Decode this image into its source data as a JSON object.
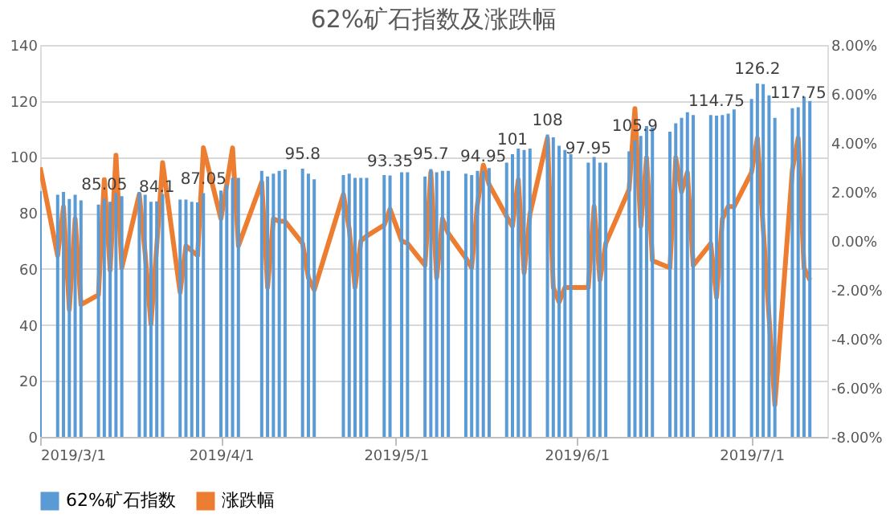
{
  "chart_data": {
    "type": "bar",
    "title": "62%矿石指数及涨跌幅",
    "x": [
      "2019-03-01",
      "2019-03-04",
      "2019-03-05",
      "2019-03-06",
      "2019-03-07",
      "2019-03-08",
      "2019-03-11",
      "2019-03-12",
      "2019-03-13",
      "2019-03-14",
      "2019-03-15",
      "2019-03-18",
      "2019-03-19",
      "2019-03-20",
      "2019-03-21",
      "2019-03-22",
      "2019-03-25",
      "2019-03-26",
      "2019-03-27",
      "2019-03-28",
      "2019-03-29",
      "2019-04-01",
      "2019-04-02",
      "2019-04-03",
      "2019-04-04",
      "2019-04-08",
      "2019-04-09",
      "2019-04-10",
      "2019-04-11",
      "2019-04-12",
      "2019-04-15",
      "2019-04-16",
      "2019-04-17",
      "2019-04-22",
      "2019-04-23",
      "2019-04-24",
      "2019-04-25",
      "2019-04-26",
      "2019-04-29",
      "2019-04-30",
      "2019-05-02",
      "2019-05-03",
      "2019-05-06",
      "2019-05-07",
      "2019-05-08",
      "2019-05-09",
      "2019-05-10",
      "2019-05-13",
      "2019-05-14",
      "2019-05-15",
      "2019-05-16",
      "2019-05-17",
      "2019-05-20",
      "2019-05-21",
      "2019-05-22",
      "2019-05-23",
      "2019-05-24",
      "2019-05-27",
      "2019-05-28",
      "2019-05-29",
      "2019-05-30",
      "2019-05-31",
      "2019-06-03",
      "2019-06-04",
      "2019-06-05",
      "2019-06-06",
      "2019-06-10",
      "2019-06-11",
      "2019-06-12",
      "2019-06-13",
      "2019-06-14",
      "2019-06-17",
      "2019-06-18",
      "2019-06-19",
      "2019-06-20",
      "2019-06-21",
      "2019-06-24",
      "2019-06-25",
      "2019-06-26",
      "2019-06-27",
      "2019-06-28",
      "2019-07-01",
      "2019-07-02",
      "2019-07-03",
      "2019-07-04",
      "2019-07-05",
      "2019-07-08",
      "2019-07-09",
      "2019-07-10",
      "2019-07-11"
    ],
    "series": [
      {
        "name": "62%矿石指数",
        "color": "#5b9bd5",
        "values": [
          87.8,
          86.5,
          87.5,
          85,
          86.5,
          84.5,
          83,
          85.05,
          84,
          87,
          86,
          87.5,
          86.5,
          84,
          84.1,
          86.8,
          84.8,
          84.8,
          84,
          83.8,
          87.05,
          88,
          90,
          92.5,
          92.5,
          95,
          93,
          94,
          95,
          95.5,
          95.8,
          94,
          92,
          93.5,
          94,
          92.5,
          92.5,
          92.5,
          93.5,
          93.35,
          94.5,
          94.5,
          93,
          95.7,
          94.5,
          95,
          95,
          94,
          93.5,
          95,
          94.95,
          96,
          98,
          101,
          103,
          102.5,
          103,
          108,
          107,
          104,
          102.5,
          101,
          97.95,
          100,
          98,
          98,
          102,
          105.9,
          107.5,
          111,
          110.5,
          109,
          112,
          114,
          116,
          115,
          115,
          114.75,
          115,
          115.5,
          117,
          120.7,
          126.2,
          126,
          122,
          114,
          117.4,
          117.75,
          121.5,
          120
        ],
        "value_labels": [
          null,
          null,
          null,
          null,
          null,
          null,
          null,
          "85.05",
          null,
          null,
          null,
          null,
          null,
          null,
          "84.1",
          null,
          null,
          null,
          null,
          null,
          "87.05",
          null,
          null,
          null,
          null,
          null,
          null,
          null,
          null,
          null,
          "95.8",
          null,
          null,
          null,
          null,
          null,
          null,
          null,
          null,
          "93.35",
          null,
          null,
          null,
          "95.7",
          null,
          null,
          null,
          null,
          null,
          null,
          "94.95",
          null,
          null,
          "101",
          null,
          null,
          null,
          "108",
          null,
          null,
          null,
          null,
          "97.95",
          null,
          null,
          null,
          null,
          "105.9",
          null,
          null,
          null,
          null,
          null,
          null,
          null,
          null,
          null,
          "114.75",
          null,
          null,
          null,
          null,
          "126.2",
          null,
          null,
          null,
          null,
          "117.75",
          null,
          null
        ]
      },
      {
        "name": "涨跌幅",
        "type": "line",
        "axis": "y2",
        "color": "#ed7d31",
        "values": [
          3.0,
          -0.6,
          1.4,
          -2.8,
          0.9,
          -2.6,
          -2.2,
          2.5,
          -1.2,
          3.5,
          -1.1,
          1.9,
          -0.5,
          -3.4,
          -0.2,
          3.2,
          -2.1,
          -0.2,
          -0.4,
          -0.6,
          3.8,
          0.9,
          2.3,
          3.8,
          -0.2,
          2.4,
          -1.9,
          0.9,
          0.8,
          0.8,
          -0.1,
          -1.5,
          -2.0,
          1.9,
          0.5,
          -1.9,
          0.0,
          0.2,
          0.65,
          1.3,
          0.0,
          -0.1,
          -1.0,
          2.8,
          -1.5,
          0.9,
          0.3,
          -0.7,
          -1.1,
          1.5,
          3.1,
          2.3,
          1.0,
          0.6,
          2.5,
          -1.3,
          1.1,
          4.2,
          -1.9,
          -2.5,
          -1.9,
          -1.9,
          -1.9,
          1.4,
          -1.6,
          -0.1,
          2.1,
          5.4,
          0.6,
          3.4,
          -0.8,
          -1.1,
          3.4,
          2.0,
          2.8,
          -1.0,
          -0.1,
          -2.3,
          0.9,
          1.4,
          1.4,
          2.8,
          4.2,
          0.5,
          -3.1,
          -6.7,
          2.9,
          4.2,
          -1.1,
          -1.6
        ]
      }
    ],
    "xlim": [
      "2019-03-01",
      "2019-07-14"
    ],
    "xticks": [
      {
        "value": "2019-03-01",
        "label": "2019/3/1"
      },
      {
        "value": "2019-04-01",
        "label": "2019/4/1"
      },
      {
        "value": "2019-05-01",
        "label": "2019/5/1"
      },
      {
        "value": "2019-06-01",
        "label": "2019/6/1"
      },
      {
        "value": "2019-07-01",
        "label": "2019/7/1"
      }
    ],
    "ylim": [
      0,
      140
    ],
    "yticks": [
      0,
      20,
      40,
      60,
      80,
      100,
      120,
      140
    ],
    "y2lim": [
      -8,
      8
    ],
    "y2ticks": [
      {
        "value": -8,
        "label": "-8.00%"
      },
      {
        "value": -6,
        "label": "-6.00%"
      },
      {
        "value": -4,
        "label": "-4.00%"
      },
      {
        "value": -2,
        "label": "-2.00%"
      },
      {
        "value": 0,
        "label": "0.00%"
      },
      {
        "value": 2,
        "label": "2.00%"
      },
      {
        "value": 4,
        "label": "4.00%"
      },
      {
        "value": 6,
        "label": "6.00%"
      },
      {
        "value": 8,
        "label": "8.00%"
      }
    ],
    "grid": "y",
    "legend": "bottom",
    "line_style": "solid",
    "marker": "none"
  }
}
